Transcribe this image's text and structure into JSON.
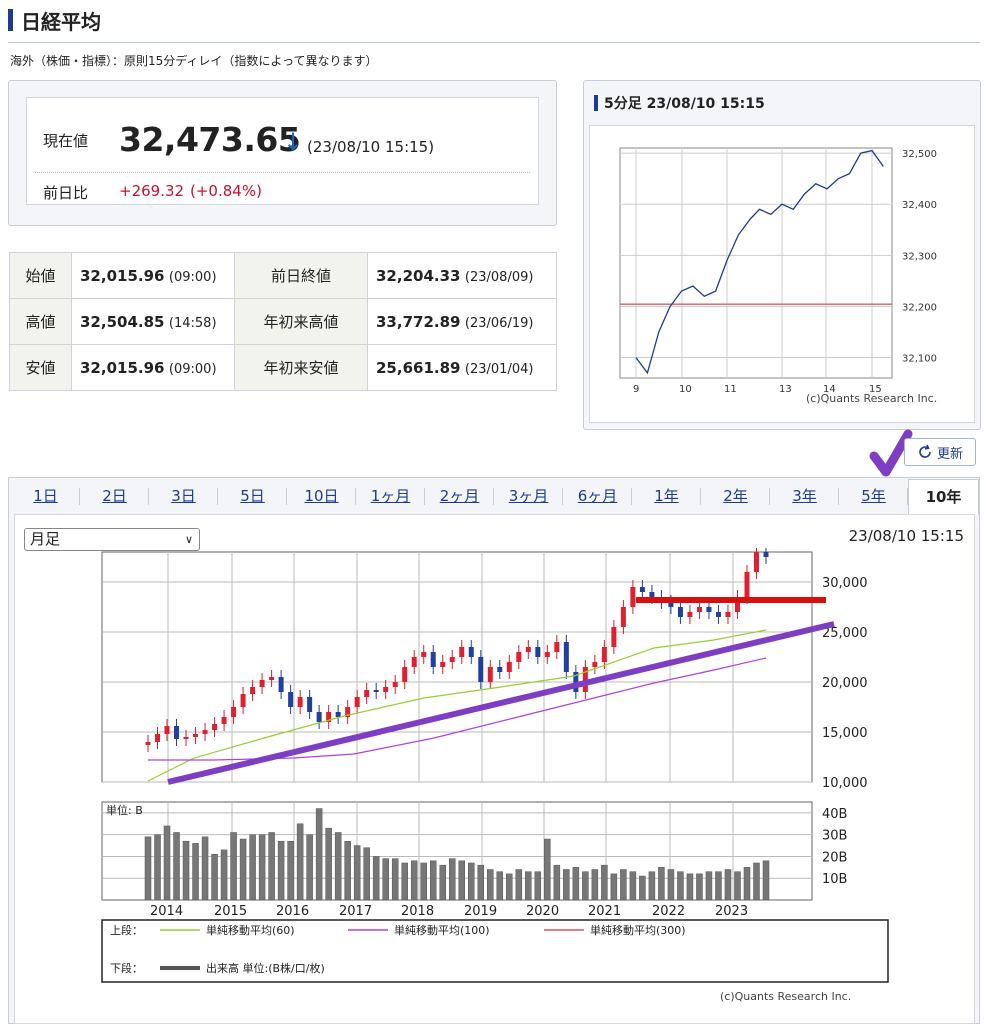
{
  "page_title": "日経平均",
  "notice": "海外（株価・指標）：原則15分ディレイ（指数によって異なります）",
  "price": {
    "current_label": "現在値",
    "current_value": "32,473.65",
    "direction_arrow": "↓",
    "timestamp": "(23/08/10 15:15)",
    "change_label": "前日比",
    "change_value": "+269.32",
    "change_pct": "(+0.84%)"
  },
  "stats": [
    {
      "label": "始値",
      "value": "32,015.96",
      "note": "(09:00)",
      "label2": "前日終値",
      "value2": "32,204.33",
      "note2": "(23/08/09)"
    },
    {
      "label": "高値",
      "value": "32,504.85",
      "note": "(14:58)",
      "label2": "年初来高値",
      "value2": "33,772.89",
      "note2": "(23/06/19)"
    },
    {
      "label": "安値",
      "value": "32,015.96",
      "note": "(09:00)",
      "label2": "年初来安値",
      "value2": "25,661.89",
      "note2": "(23/01/04)"
    }
  ],
  "intraday": {
    "title": "5分足 23/08/10 15:15",
    "y_ticks": [
      "32,500",
      "32,400",
      "32,300",
      "32,200",
      "32,100"
    ],
    "x_ticks": [
      "9",
      "10",
      "11",
      "13",
      "14",
      "15"
    ],
    "copyright": "(c)Quants Research Inc."
  },
  "update_button": "更新",
  "tabs": [
    "1日",
    "2日",
    "3日",
    "5日",
    "10日",
    "1ヶ月",
    "2ヶ月",
    "3ヶ月",
    "6ヶ月",
    "1年",
    "2年",
    "3年",
    "5年",
    "10年"
  ],
  "active_tab": "10年",
  "period_select": "月足",
  "chart_timestamp": "23/08/10 15:15",
  "main_chart": {
    "y_ticks": [
      "30,000",
      "25,000",
      "20,000",
      "15,000",
      "10,000"
    ],
    "x_ticks": [
      "2014",
      "2015",
      "2016",
      "2017",
      "2018",
      "2019",
      "2020",
      "2021",
      "2022",
      "2023"
    ],
    "volume_unit_label": "単位: B",
    "volume_ticks": [
      "40B",
      "30B",
      "20B",
      "10B"
    ],
    "legend_upper_label": "上段：",
    "legend_items": [
      "単純移動平均(60)",
      "単純移動平均(100)",
      "単純移動平均(300)"
    ],
    "legend_colors": [
      "#9acd32",
      "#b040e0",
      "#e05050"
    ],
    "legend_lower_label": "下段：",
    "legend_volume": "出来高 単位:(B株/口/枚)",
    "copyright": "(c)Quants Research Inc."
  },
  "chart_data": [
    {
      "type": "line",
      "title": "5分足 23/08/10 15:15",
      "x_ticks": [
        "9",
        "10",
        "11",
        "13",
        "14",
        "15"
      ],
      "ylim": [
        32060,
        32510
      ],
      "reference_line": 32204.33,
      "x": [
        "9:00",
        "9:15",
        "9:30",
        "9:45",
        "10:00",
        "10:15",
        "10:30",
        "10:45",
        "11:00",
        "11:15",
        "11:30",
        "12:30",
        "12:45",
        "13:00",
        "13:15",
        "13:30",
        "13:45",
        "14:00",
        "14:15",
        "14:30",
        "14:45",
        "15:00",
        "15:15"
      ],
      "values": [
        32100,
        32070,
        32150,
        32200,
        32230,
        32240,
        32220,
        32230,
        32290,
        32340,
        32370,
        32390,
        32380,
        32400,
        32390,
        32420,
        32440,
        32430,
        32450,
        32460,
        32500,
        32505,
        32474
      ]
    },
    {
      "type": "bar",
      "title": "",
      "x_ticks": [
        "2014",
        "2015",
        "2016",
        "2017",
        "2018",
        "2019",
        "2020",
        "2021",
        "2022",
        "2023"
      ],
      "ylim": [
        10000,
        33000
      ],
      "series": [
        {
          "name": "",
          "values": [
            14000,
            14800,
            15600,
            14300,
            14500,
            14800,
            15200,
            15800,
            16500,
            17500,
            18800,
            19500,
            20200,
            20500,
            19000,
            17500,
            18500,
            17000,
            16000,
            17000,
            16500,
            17500,
            18500,
            19200,
            19000,
            19500,
            20000,
            21500,
            22500,
            23000,
            21500,
            22000,
            22500,
            23500,
            22500,
            20000,
            21500,
            21000,
            22000,
            23000,
            23500,
            22500,
            23000,
            24000,
            21000,
            19000,
            21500,
            22000,
            23500,
            25500,
            27500,
            29500,
            29000,
            28500,
            28000,
            27500,
            26500,
            27000,
            27500,
            27000,
            26500,
            27000,
            28500,
            31000,
            33000,
            32500
          ]
        }
      ]
    },
    {
      "type": "bar",
      "title": "",
      "ylim": [
        0,
        45
      ],
      "series": [
        {
          "name": "",
          "values": [
            29,
            30,
            34,
            31,
            27,
            26,
            29,
            21,
            23,
            31,
            28,
            30,
            30,
            31,
            27,
            27,
            35,
            30,
            42,
            33,
            31,
            27,
            25,
            24,
            20,
            19,
            19,
            17,
            18,
            17,
            18,
            16,
            19,
            18,
            17,
            16,
            14,
            13,
            12,
            14,
            13,
            13,
            28,
            16,
            14,
            15,
            13,
            14,
            16,
            12,
            14,
            13,
            11,
            13,
            15,
            14,
            13,
            12,
            12,
            13,
            13,
            14,
            13,
            15,
            17,
            18
          ]
        }
      ]
    }
  ]
}
